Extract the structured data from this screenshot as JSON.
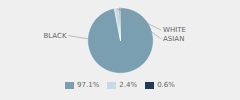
{
  "chart_data": {
    "type": "pie",
    "categories": [
      "BLACK",
      "WHITE",
      "ASIAN"
    ],
    "values": [
      97.1,
      2.4,
      0.6
    ],
    "value_labels": [
      "97.1%",
      "2.4%",
      "0.6%"
    ],
    "colors": [
      "#7a9fb0",
      "#c8dae3",
      "#1f3a52"
    ],
    "legend": "bottom"
  }
}
